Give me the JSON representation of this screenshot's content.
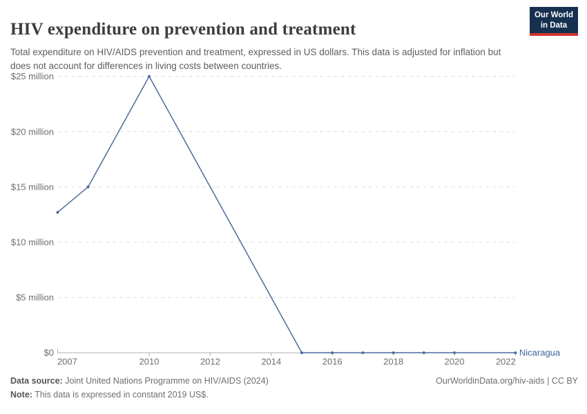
{
  "header": {
    "title": "HIV expenditure on prevention and treatment",
    "subtitle": "Total expenditure on HIV/AIDS prevention and treatment, expressed in US dollars. This data is adjusted for inflation but does not account for differences in living costs between countries.",
    "logo": {
      "line1": "Our World",
      "line2": "in Data",
      "bg_color": "#16304f",
      "accent_color": "#d0342c"
    }
  },
  "chart_data": {
    "type": "line",
    "title": "HIV expenditure on prevention and treatment",
    "xlabel": "",
    "ylabel": "",
    "xlim": [
      2007,
      2022
    ],
    "ylim": [
      0,
      25
    ],
    "grid": "horizontal-dashed",
    "grid_color": "#dcdcdc",
    "axis_color": "#b0b0b0",
    "x_ticks": [
      2007,
      2010,
      2012,
      2014,
      2016,
      2018,
      2020,
      2022
    ],
    "y_ticks": [
      {
        "value": 0,
        "label": "$0"
      },
      {
        "value": 5,
        "label": "$5 million"
      },
      {
        "value": 10,
        "label": "$10 million"
      },
      {
        "value": 15,
        "label": "$15 million"
      },
      {
        "value": 20,
        "label": "$20 million"
      },
      {
        "value": 25,
        "label": "$25 million"
      }
    ],
    "unit": "US$ million, constant 2019 US$",
    "series": [
      {
        "name": "Nicaragua",
        "color": "#4c6a9c",
        "label_color": "#3d649c",
        "points": [
          [
            2007,
            12.7
          ],
          [
            2008,
            15.0
          ],
          [
            2010,
            25.0
          ],
          [
            2015,
            0
          ],
          [
            2016,
            0
          ],
          [
            2017,
            0
          ],
          [
            2018,
            0
          ],
          [
            2019,
            0
          ],
          [
            2020,
            0
          ],
          [
            2022,
            0
          ]
        ]
      }
    ],
    "legend_position": "end-of-line-label"
  },
  "footer": {
    "source_label": "Data source:",
    "source_text": " Joint United Nations Programme on HIV/AIDS (2024)",
    "note_label": "Note:",
    "note_text": " This data is expressed in constant 2019 US$.",
    "right_text": "OurWorldinData.org/hiv-aids | CC BY"
  }
}
